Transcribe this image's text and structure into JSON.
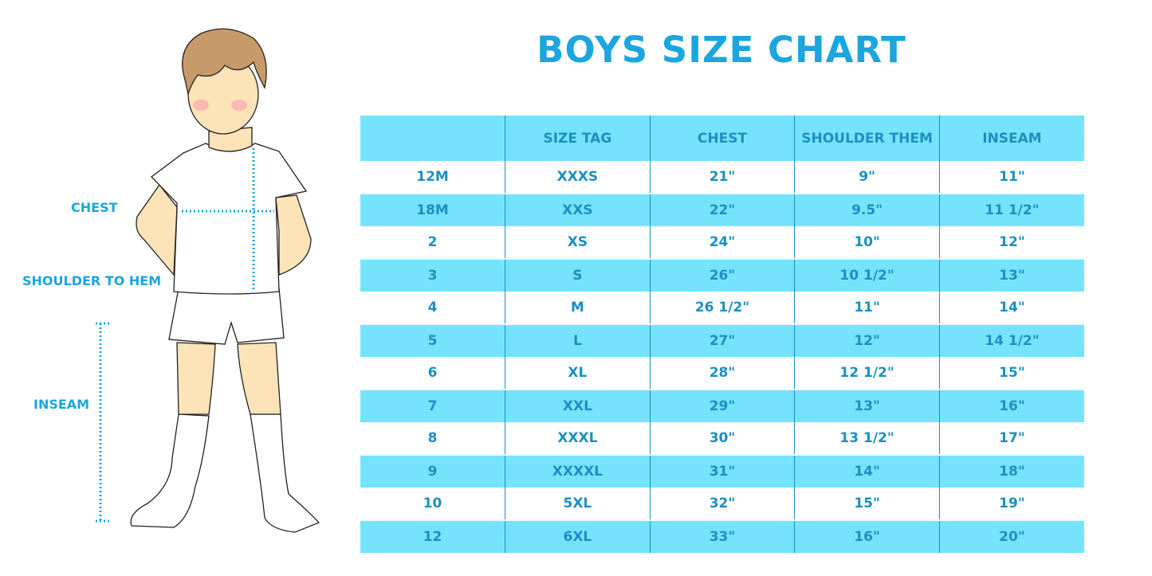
{
  "title": "BOYS SIZE CHART",
  "labels": {
    "chest": "CHEST",
    "shoulder_to_hem": "SHOULDER TO HEM",
    "inseam": "INSEAM"
  },
  "colors": {
    "title": "#1ba6de",
    "header_bg": "#76e3fc",
    "text": "#1b90c2"
  },
  "table": {
    "headers": [
      "",
      "SIZE TAG",
      "CHEST",
      "SHOULDER THEM",
      "INSEAM"
    ],
    "rows": [
      [
        "12M",
        "XXXS",
        "21\"",
        "9\"",
        "11\""
      ],
      [
        "18M",
        "XXS",
        "22\"",
        "9.5\"",
        "11 1/2\""
      ],
      [
        "2",
        "XS",
        "24\"",
        "10\"",
        "12\""
      ],
      [
        "3",
        "S",
        "26\"",
        "10 1/2\"",
        "13\""
      ],
      [
        "4",
        "M",
        "26 1/2\"",
        "11\"",
        "14\""
      ],
      [
        "5",
        "L",
        "27\"",
        "12\"",
        "14 1/2\""
      ],
      [
        "6",
        "XL",
        "28\"",
        "12 1/2\"",
        "15\""
      ],
      [
        "7",
        "XXL",
        "29\"",
        "13\"",
        "16\""
      ],
      [
        "8",
        "XXXL",
        "30\"",
        "13 1/2\"",
        "17\""
      ],
      [
        "9",
        "XXXXL",
        "31\"",
        "14\"",
        "18\""
      ],
      [
        "10",
        "5XL",
        "32\"",
        "15\"",
        "19\""
      ],
      [
        "12",
        "6XL",
        "33\"",
        "16\"",
        "20\""
      ]
    ]
  }
}
